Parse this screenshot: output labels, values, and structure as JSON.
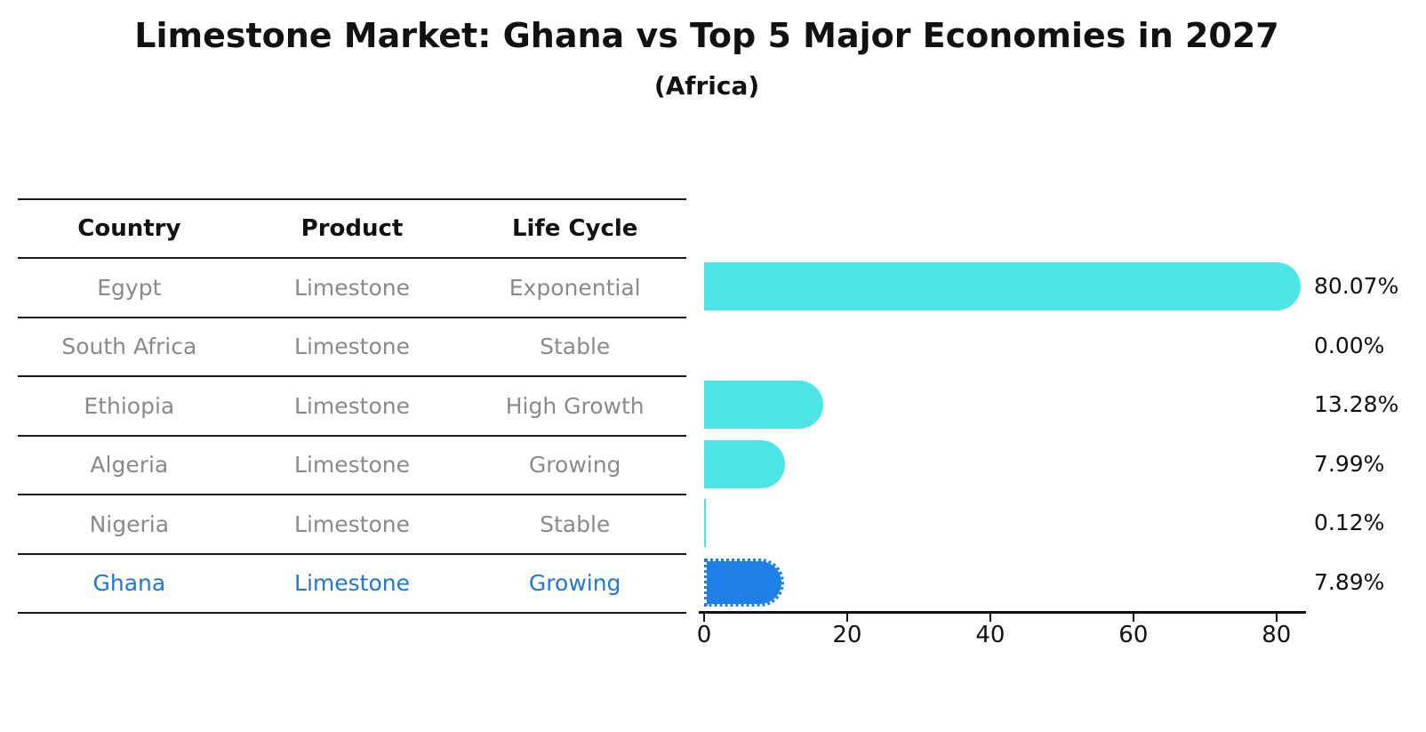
{
  "title": "Limestone Market: Ghana vs Top 5 Major Economies in 2027",
  "subtitle": "(Africa)",
  "table": {
    "headers": [
      "Country",
      "Product",
      "Life Cycle"
    ]
  },
  "chart_data": {
    "type": "bar",
    "orientation": "horizontal",
    "title": "Limestone Market: Ghana vs Top 5 Major Economies in 2027",
    "subtitle": "(Africa)",
    "xlabel": "",
    "ylabel": "",
    "xlim": [
      0,
      84
    ],
    "xticks": [
      0,
      20,
      40,
      60,
      80
    ],
    "grid": false,
    "legend": null,
    "categories": [
      "Egypt",
      "South Africa",
      "Ethiopia",
      "Algeria",
      "Nigeria",
      "Ghana"
    ],
    "values": [
      80.07,
      0.0,
      13.28,
      7.99,
      0.12,
      7.89
    ],
    "value_labels": [
      "80.07%",
      "0.00%",
      "13.28%",
      "7.99%",
      "0.12%",
      "7.89%"
    ],
    "rows": [
      {
        "country": "Egypt",
        "product": "Limestone",
        "life_cycle": "Exponential",
        "value": 80.07,
        "label": "80.07%",
        "highlight": false
      },
      {
        "country": "South Africa",
        "product": "Limestone",
        "life_cycle": "Stable",
        "value": 0.0,
        "label": "0.00%",
        "highlight": false
      },
      {
        "country": "Ethiopia",
        "product": "Limestone",
        "life_cycle": "High Growth",
        "value": 13.28,
        "label": "13.28%",
        "highlight": false
      },
      {
        "country": "Algeria",
        "product": "Limestone",
        "life_cycle": "Growing",
        "value": 7.99,
        "label": "7.99%",
        "highlight": false
      },
      {
        "country": "Nigeria",
        "product": "Limestone",
        "life_cycle": "Stable",
        "value": 0.12,
        "label": "0.12%",
        "highlight": false
      },
      {
        "country": "Ghana",
        "product": "Limestone",
        "life_cycle": "Growing",
        "value": 7.89,
        "label": "7.89%",
        "highlight": true
      }
    ],
    "colors": {
      "bar": "#4ce5e5",
      "highlight_bar": "#1e7fe8",
      "highlight_text": "#2577cb",
      "text": "#8a8a8a",
      "axis": "#111111"
    }
  }
}
